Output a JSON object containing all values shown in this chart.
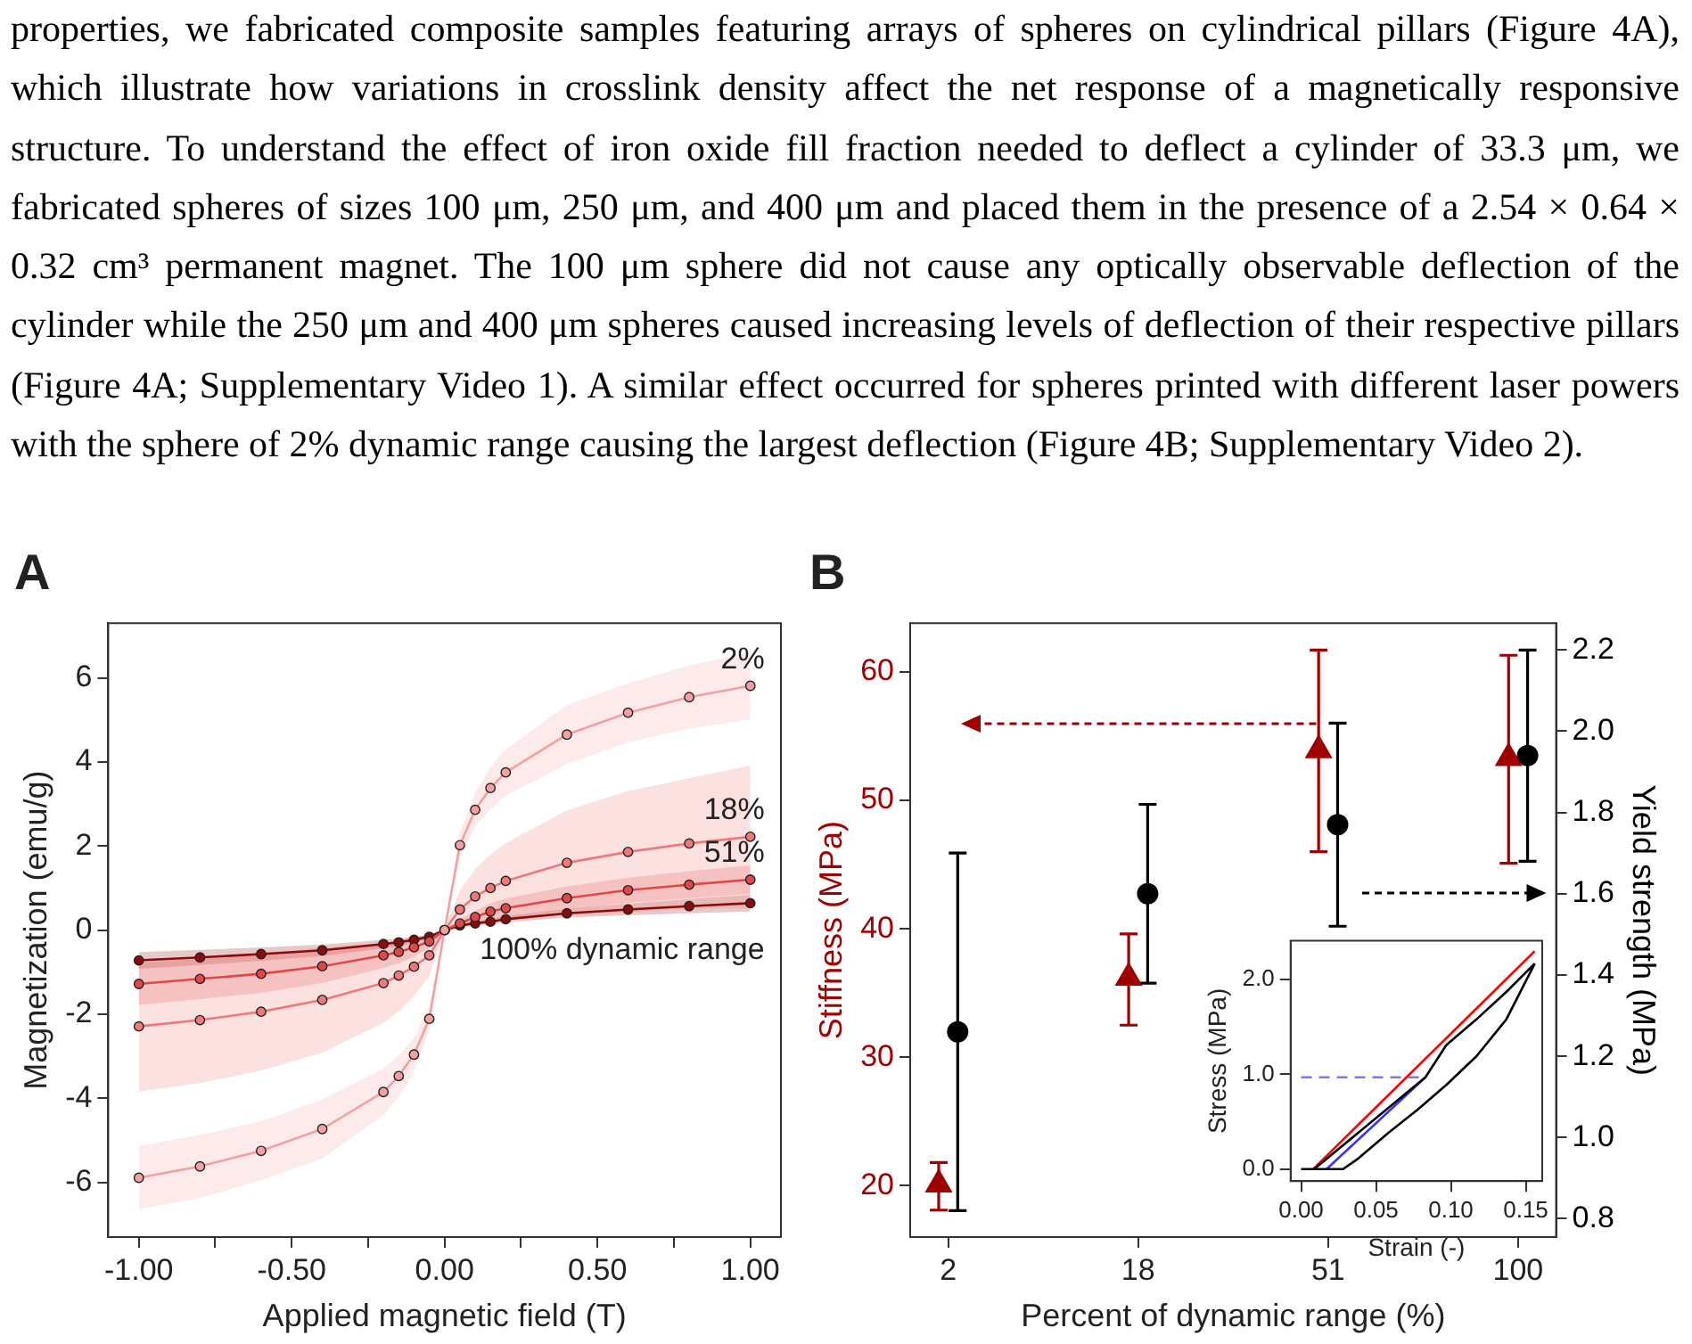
{
  "chart_data": [
    {
      "type": "line",
      "title": "A",
      "xlabel": "Applied magnetic field (T)",
      "ylabel": "Magnetization (emu/g)",
      "marker": "circle",
      "annotations": [
        "properties, we fabricated composite samples featuring arrays of spheres on cylindrical pillars (Figure 4A), which illustrate how variations in crosslink density affect the net response of a magnetically responsive structure. To understand the effect of iron oxide fill fraction needed to deflect a cylinder of 33.3 μm, we fabricated spheres of sizes 100 μm, 250 μm, and 400 μm and placed them in the presence of a 2.54 × 0.64 × 0.32 cm³ permanent magnet. The 100 μm sphere did not cause any optically observable deflection of the cylinder while the 250 μm and 400 μm spheres caused increasing levels of deflection of their respective pillars (Figure 4A; Supplementary Video 1). A similar effect occurred for spheres printed with different laser powers with the sphere of 2% dynamic range causing the largest deflection (Figure 4B; Supplementary Video 2)."
      ],
      "x": [
        -1,
        -0.8,
        -0.6,
        -0.4,
        -0.2,
        -0.15,
        -0.1,
        -0.05,
        0,
        0.05,
        0.1,
        0.15,
        0.2,
        0.4,
        0.6,
        0.8,
        1
      ],
      "xlim": [
        -1.1,
        1.1
      ],
      "xticks": [
        {
          "value": -1,
          "label": "-1.00"
        },
        {
          "value": -0.75,
          "label": null
        },
        {
          "value": -0.5,
          "label": "-0.50"
        },
        {
          "value": -0.25,
          "label": null
        },
        {
          "value": 0,
          "label": "0.00"
        },
        {
          "value": 0.25,
          "label": null
        },
        {
          "value": 0.5,
          "label": "0.50"
        },
        {
          "value": 0.75,
          "label": null
        },
        {
          "value": 1,
          "label": "1.00"
        }
      ],
      "ylim": [
        -7.3,
        7.3
      ],
      "yticks": [
        -6,
        -4,
        -2,
        0,
        2,
        4,
        6
      ],
      "series": [
        {
          "name": "2%",
          "color": "#f5a0a0",
          "values": [
            -5.89,
            -5.62,
            -5.25,
            -4.73,
            -3.85,
            -3.47,
            -2.96,
            -2.11,
            0,
            2.02,
            2.86,
            3.38,
            3.75,
            4.65,
            5.17,
            5.54,
            5.81
          ],
          "lower": [
            -6.64,
            -6.37,
            -5.95,
            -5.43,
            -4.4,
            -3.97,
            -3.36,
            -2.41,
            -0.05,
            1.72,
            2.46,
            2.88,
            3.2,
            3.95,
            4.47,
            4.79,
            5.01
          ],
          "upper": [
            -5.14,
            -4.87,
            -4.55,
            -4.03,
            -3.3,
            -2.97,
            -2.56,
            -1.81,
            0.05,
            2.32,
            3.26,
            3.88,
            4.3,
            5.35,
            5.87,
            6.29,
            6.61
          ]
        },
        {
          "name": "18%",
          "color": "#f07878",
          "values": [
            -2.29,
            -2.14,
            -1.94,
            -1.66,
            -1.26,
            -1.08,
            -0.87,
            -0.6,
            0,
            0.49,
            0.8,
            1,
            1.17,
            1.6,
            1.86,
            2.06,
            2.22
          ],
          "lower": [
            -3.84,
            -3.64,
            -3.34,
            -2.91,
            -2.21,
            -1.93,
            -1.57,
            -1.1,
            -0.05,
            0.04,
            0.15,
            0.2,
            0.27,
            0.35,
            0.41,
            0.51,
            0.52
          ],
          "upper": [
            -0.74,
            -0.64,
            -0.54,
            -0.41,
            -0.31,
            -0.23,
            -0.17,
            -0.1,
            0.05,
            0.94,
            1.45,
            1.8,
            2.07,
            2.85,
            3.31,
            3.61,
            3.92
          ]
        },
        {
          "name": "51%",
          "color": "#e04848",
          "values": [
            -1.28,
            -1.16,
            -1.04,
            -0.86,
            -0.6,
            -0.52,
            -0.41,
            -0.27,
            0,
            0.16,
            0.31,
            0.44,
            0.52,
            0.76,
            0.95,
            1.08,
            1.2
          ],
          "lower": [
            -1.78,
            -1.64,
            -1.49,
            -1.26,
            -0.9,
            -0.79,
            -0.63,
            -0.42,
            -0.03,
            0.06,
            0.16,
            0.24,
            0.29,
            0.48,
            0.65,
            0.76,
            0.86
          ],
          "upper": [
            -0.78,
            -0.68,
            -0.59,
            -0.46,
            -0.3,
            -0.25,
            -0.19,
            -0.12,
            0.03,
            0.26,
            0.46,
            0.64,
            0.75,
            1.04,
            1.25,
            1.4,
            1.54
          ]
        },
        {
          "name": "100% dynamic range",
          "color": "#8b0a0a",
          "values": [
            -0.72,
            -0.65,
            -0.57,
            -0.48,
            -0.33,
            -0.29,
            -0.23,
            -0.16,
            0,
            0.11,
            0.16,
            0.2,
            0.26,
            0.4,
            0.49,
            0.57,
            0.64
          ],
          "lower": [
            -0.92,
            -0.83,
            -0.73,
            -0.62,
            -0.43,
            -0.38,
            -0.3,
            -0.21,
            -0.02,
            0.07,
            0.11,
            0.14,
            0.19,
            0.3,
            0.35,
            0.4,
            0.44
          ],
          "upper": [
            -0.52,
            -0.47,
            -0.41,
            -0.34,
            -0.23,
            -0.2,
            -0.16,
            -0.11,
            0.02,
            0.15,
            0.21,
            0.26,
            0.33,
            0.5,
            0.63,
            0.74,
            0.84
          ]
        }
      ]
    },
    {
      "type": "scatter",
      "title": "B",
      "xlabel": "Percent of dynamic range (%)",
      "ylabel": "Stiffness (MPa)",
      "y2label": "Yield strength (MPa)",
      "categories": [
        "2",
        "18",
        "51",
        "100"
      ],
      "ylim": [
        16,
        63.8
      ],
      "yticks": [
        20,
        30,
        40,
        50,
        60
      ],
      "y2lim": [
        0.755,
        2.266
      ],
      "y2ticks": [
        0.8,
        {
          "value": 1,
          "label": "1.0"
        },
        1.2,
        1.4,
        1.6,
        1.8,
        {
          "value": 2,
          "label": "2.0"
        },
        2.2
      ],
      "series": [
        {
          "color": "#a00000",
          "marker": "triangle",
          "values": [
            20.1,
            36.2,
            53.9,
            53.3
          ],
          "errors": [
            [
              18.1,
              21.8
            ],
            [
              32.5,
              39.6
            ],
            [
              46.0,
              61.7
            ],
            [
              45.1,
              61.3
            ]
          ]
        },
        {
          "color": "#000000",
          "marker": "circle",
          "axis": "y2",
          "values": [
            1.26,
            1.6,
            1.77,
            1.94
          ],
          "errors": [
            [
              0.82,
              1.7
            ],
            [
              1.38,
              1.82
            ],
            [
              1.52,
              2.02
            ],
            [
              1.68,
              2.2
            ]
          ]
        }
      ]
    },
    {
      "type": "line",
      "xlabel": "Strain (-)",
      "ylabel": "Stress (MPa)",
      "xlim": [
        -0.007,
        0.161
      ],
      "xticks": [
        {
          "value": 0,
          "label": "0.00"
        },
        {
          "value": 0.05,
          "label": "0.05"
        },
        {
          "value": 0.1,
          "label": "0.10"
        },
        {
          "value": 0.15,
          "label": "0.15"
        }
      ],
      "ylim": [
        -0.126,
        2.41
      ],
      "yticks": [
        {
          "value": 0,
          "label": "0.0"
        },
        {
          "value": 1,
          "label": "1.0"
        },
        {
          "value": 2,
          "label": "2.0"
        }
      ],
      "series": [
        {
          "color": "#000000",
          "x": [
            0.0087,
            0.083,
            0.097,
            0.117,
            0.137,
            0.156
          ],
          "values": [
            0,
            0.97,
            1.31,
            1.58,
            1.87,
            2.17
          ]
        },
        {
          "color": "#000000",
          "x": [
            0,
            0.028,
            0.038,
            0.058,
            0.078,
            0.097,
            0.117,
            0.137,
            0.156
          ],
          "values": [
            0,
            0,
            0.11,
            0.38,
            0.63,
            0.89,
            1.19,
            1.58,
            2.17
          ]
        },
        {
          "color": "#ff0000",
          "x": [
            0.008,
            0.156
          ],
          "values": [
            0,
            2.3
          ]
        },
        {
          "color": "#3333ff",
          "x": [
            0.017,
            0.083
          ],
          "values": [
            0,
            0.97
          ]
        },
        {
          "color": "#7777ff",
          "line_style": "dashed",
          "x": [
            0,
            0.083
          ],
          "values": [
            0.97,
            0.97
          ]
        }
      ]
    }
  ]
}
